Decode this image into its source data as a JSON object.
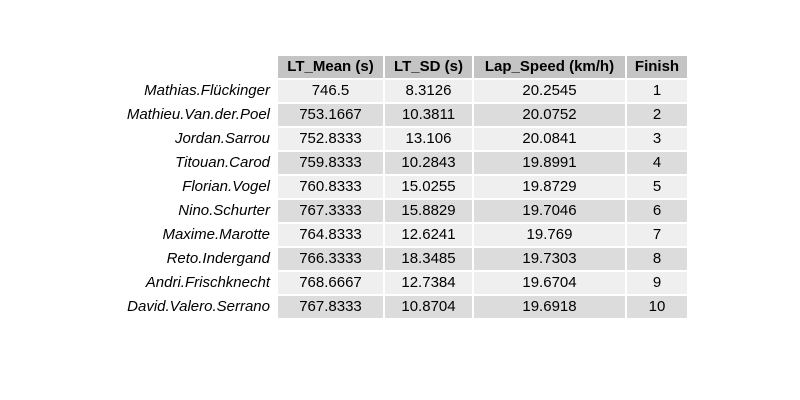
{
  "table": {
    "columns": [
      "LT_Mean (s)",
      "LT_SD (s)",
      "Lap_Speed (km/h)",
      "Finish"
    ],
    "rows": [
      {
        "rider": "Mathias.Flückinger",
        "lt_mean": "746.5",
        "lt_sd": "8.3126",
        "lap_speed": "20.2545",
        "finish": "1"
      },
      {
        "rider": "Mathieu.Van.der.Poel",
        "lt_mean": "753.1667",
        "lt_sd": "10.3811",
        "lap_speed": "20.0752",
        "finish": "2"
      },
      {
        "rider": "Jordan.Sarrou",
        "lt_mean": "752.8333",
        "lt_sd": "13.106",
        "lap_speed": "20.0841",
        "finish": "3"
      },
      {
        "rider": "Titouan.Carod",
        "lt_mean": "759.8333",
        "lt_sd": "10.2843",
        "lap_speed": "19.8991",
        "finish": "4"
      },
      {
        "rider": "Florian.Vogel",
        "lt_mean": "760.8333",
        "lt_sd": "15.0255",
        "lap_speed": "19.8729",
        "finish": "5"
      },
      {
        "rider": "Nino.Schurter",
        "lt_mean": "767.3333",
        "lt_sd": "15.8829",
        "lap_speed": "19.7046",
        "finish": "6"
      },
      {
        "rider": "Maxime.Marotte",
        "lt_mean": "764.8333",
        "lt_sd": "12.6241",
        "lap_speed": "19.769",
        "finish": "7"
      },
      {
        "rider": "Reto.Indergand",
        "lt_mean": "766.3333",
        "lt_sd": "18.3485",
        "lap_speed": "19.7303",
        "finish": "8"
      },
      {
        "rider": "Andri.Frischknecht",
        "lt_mean": "768.6667",
        "lt_sd": "12.7384",
        "lap_speed": "19.6704",
        "finish": "9"
      },
      {
        "rider": "David.Valero.Serrano",
        "lt_mean": "767.8333",
        "lt_sd": "10.8704",
        "lap_speed": "19.6918",
        "finish": "10"
      }
    ]
  }
}
